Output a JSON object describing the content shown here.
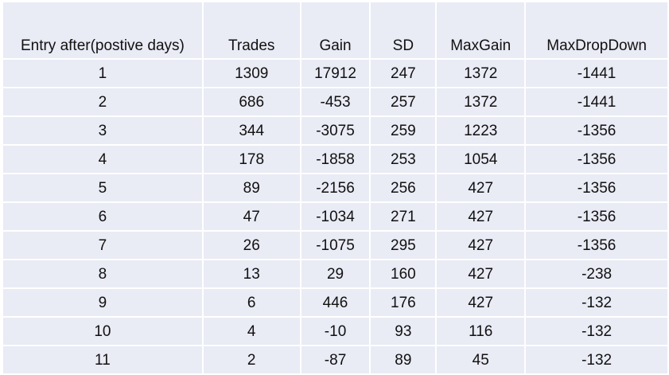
{
  "table": {
    "headers": [
      "Entry after(postive days)",
      "Trades",
      "Gain",
      "SD",
      "MaxGain",
      "MaxDropDown"
    ],
    "rows": [
      [
        "1",
        "1309",
        "17912",
        "247",
        "1372",
        "-1441"
      ],
      [
        "2",
        "686",
        "-453",
        "257",
        "1372",
        "-1441"
      ],
      [
        "3",
        "344",
        "-3075",
        "259",
        "1223",
        "-1356"
      ],
      [
        "4",
        "178",
        "-1858",
        "253",
        "1054",
        "-1356"
      ],
      [
        "5",
        "89",
        "-2156",
        "256",
        "427",
        "-1356"
      ],
      [
        "6",
        "47",
        "-1034",
        "271",
        "427",
        "-1356"
      ],
      [
        "7",
        "26",
        "-1075",
        "295",
        "427",
        "-1356"
      ],
      [
        "8",
        "13",
        "29",
        "160",
        "427",
        "-238"
      ],
      [
        "9",
        "6",
        "446",
        "176",
        "427",
        "-132"
      ],
      [
        "10",
        "4",
        "-10",
        "93",
        "116",
        "-132"
      ],
      [
        "11",
        "2",
        "-87",
        "89",
        "45",
        "-132"
      ]
    ]
  },
  "colors": {
    "cell_background": "#e9ebf5",
    "grid_lines": "#ffffff",
    "text": "#111111"
  }
}
